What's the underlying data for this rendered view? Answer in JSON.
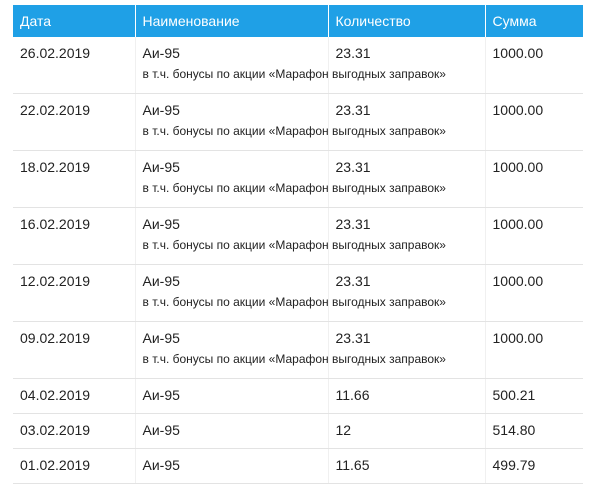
{
  "table": {
    "header": [
      "Дата",
      "Наименование",
      "Количество",
      "Сумма"
    ],
    "rows": [
      {
        "cells": [
          "26.02.2019",
          "Аи-95",
          "23.31",
          "1000.00"
        ],
        "note": "в т.ч. бонусы по акции «Марафон выгодных заправок»"
      },
      {
        "cells": [
          "22.02.2019",
          "Аи-95",
          "23.31",
          "1000.00"
        ],
        "note": "в т.ч. бонусы по акции «Марафон выгодных заправок»"
      },
      {
        "cells": [
          "18.02.2019",
          "Аи-95",
          "23.31",
          "1000.00"
        ],
        "note": "в т.ч. бонусы по акции «Марафон выгодных заправок»"
      },
      {
        "cells": [
          "16.02.2019",
          "Аи-95",
          "23.31",
          "1000.00"
        ],
        "note": "в т.ч. бонусы по акции «Марафон выгодных заправок»"
      },
      {
        "cells": [
          "12.02.2019",
          "Аи-95",
          "23.31",
          "1000.00"
        ],
        "note": "в т.ч. бонусы по акции «Марафон выгодных заправок»"
      },
      {
        "cells": [
          "09.02.2019",
          "Аи-95",
          "23.31",
          "1000.00"
        ],
        "note": "в т.ч. бонусы по акции «Марафон выгодных заправок»"
      },
      {
        "cells": [
          "04.02.2019",
          "Аи-95",
          "11.66",
          "500.21"
        ]
      },
      {
        "cells": [
          "03.02.2019",
          "Аи-95",
          "12",
          "514.80"
        ]
      },
      {
        "cells": [
          "01.02.2019",
          "Аи-95",
          "11.65",
          "499.79"
        ]
      }
    ]
  }
}
